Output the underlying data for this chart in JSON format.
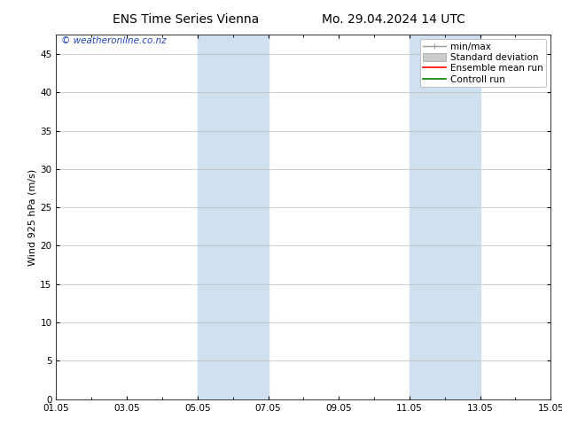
{
  "title_left": "ENS Time Series Vienna",
  "title_right": "Mo. 29.04.2024 14 UTC",
  "ylabel": "Wind 925 hPa (m/s)",
  "ylim": [
    0,
    47.5
  ],
  "yticks": [
    0,
    5,
    10,
    15,
    20,
    25,
    30,
    35,
    40,
    45
  ],
  "xlim": [
    0,
    14
  ],
  "xtick_labels": [
    "01.05",
    "03.05",
    "05.05",
    "07.05",
    "09.05",
    "11.05",
    "13.05",
    "15.05"
  ],
  "xtick_positions_days": [
    0,
    2,
    4,
    6,
    8,
    10,
    12,
    14
  ],
  "shade_bands": [
    {
      "x_start_days": 4,
      "x_end_days": 6,
      "color": "#cfe0f0"
    },
    {
      "x_start_days": 10,
      "x_end_days": 12,
      "color": "#cfe0f0"
    }
  ],
  "copyright_text": "© weatheronline.co.nz",
  "copyright_color": "#2244bb",
  "background_color": "#ffffff",
  "plot_bg_color": "#ffffff",
  "grid_color": "#bbbbbb",
  "legend_items": [
    {
      "label": "min/max",
      "color": "#999999",
      "linestyle": "-",
      "linewidth": 1.0
    },
    {
      "label": "Standard deviation",
      "color": "#cccccc",
      "linestyle": "-",
      "linewidth": 1.0
    },
    {
      "label": "Ensemble mean run",
      "color": "#ff0000",
      "linestyle": "-",
      "linewidth": 1.2
    },
    {
      "label": "Controll run",
      "color": "#008000",
      "linestyle": "-",
      "linewidth": 1.2
    }
  ],
  "title_fontsize": 10,
  "axis_label_fontsize": 8,
  "tick_fontsize": 7.5,
  "legend_fontsize": 7.5,
  "copyright_fontsize": 7.5
}
